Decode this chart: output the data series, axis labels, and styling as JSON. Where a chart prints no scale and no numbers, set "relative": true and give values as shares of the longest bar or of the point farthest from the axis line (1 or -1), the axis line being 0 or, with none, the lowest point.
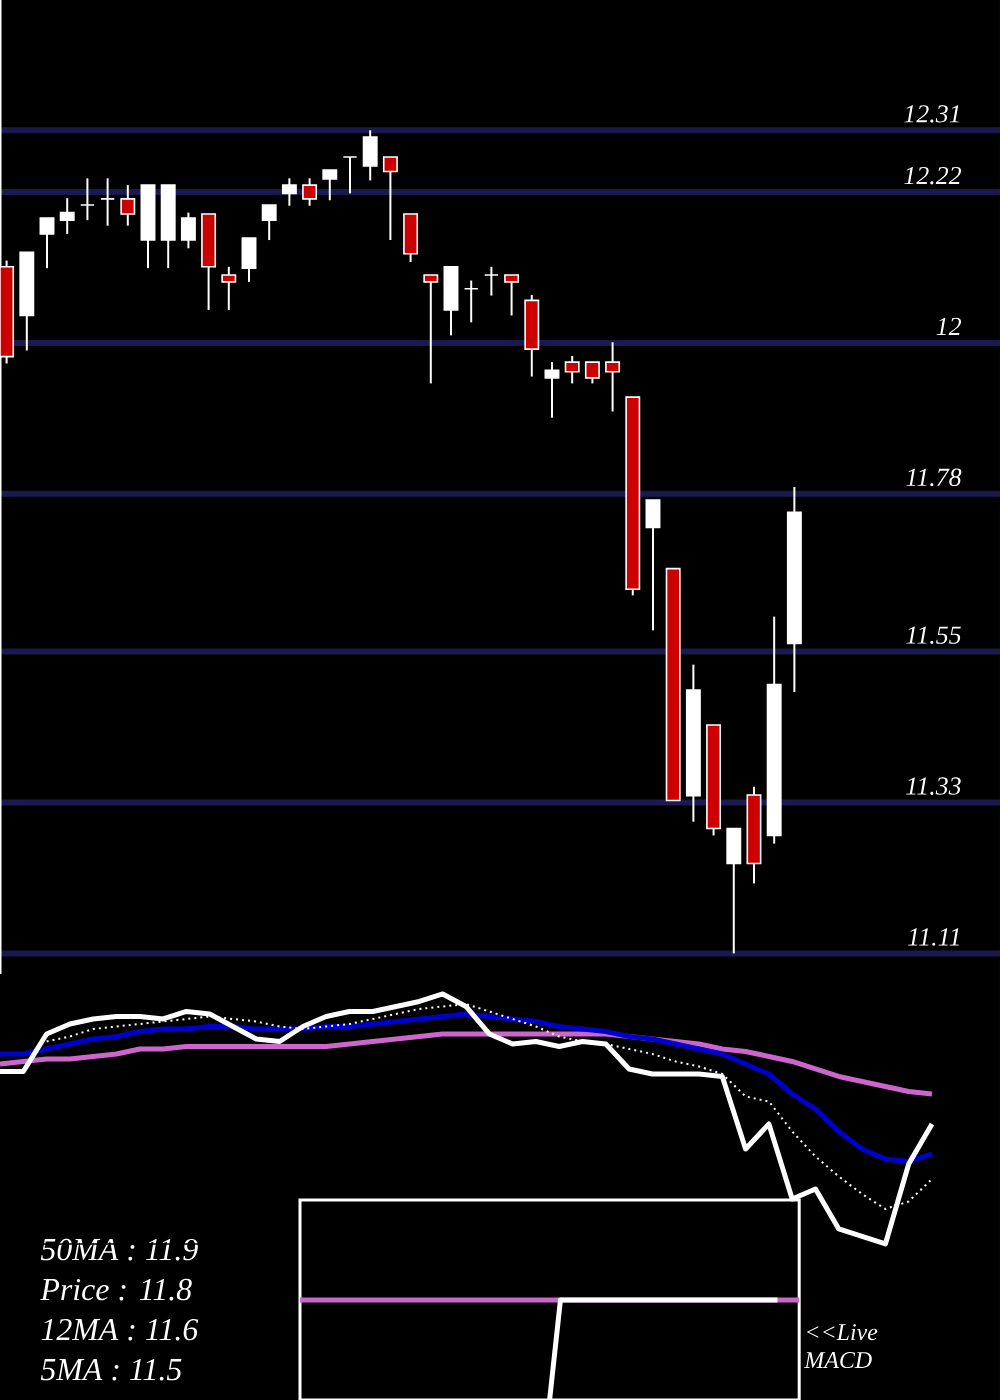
{
  "chart_data": [
    {
      "type": "candlestick",
      "categories": [
        null,
        null,
        null,
        null,
        null,
        null,
        null,
        null,
        null,
        null,
        null,
        null,
        null,
        null,
        null,
        null,
        null,
        null,
        null,
        null,
        null,
        null,
        null,
        null,
        null,
        null,
        null,
        null,
        null,
        null,
        null,
        null,
        null,
        null,
        null,
        null,
        null,
        null,
        null,
        null
      ],
      "ohlc": [
        [
          12.111,
          12.12,
          11.97,
          11.98
        ],
        [
          12.04,
          12.132,
          11.989,
          12.132
        ],
        [
          12.159,
          12.182,
          12.109,
          12.182
        ],
        [
          12.179,
          12.211,
          12.159,
          12.19
        ],
        [
          12.201,
          12.24,
          12.179,
          12.201
        ],
        [
          12.21,
          12.24,
          12.171,
          12.21
        ],
        [
          12.21,
          12.23,
          12.171,
          12.188
        ],
        [
          12.15,
          12.23,
          12.109,
          12.23
        ],
        [
          12.15,
          12.23,
          12.109,
          12.23
        ],
        [
          12.15,
          12.19,
          12.138,
          12.182
        ],
        [
          12.188,
          12.188,
          12.048,
          12.111
        ],
        [
          12.099,
          12.111,
          12.048,
          12.089
        ],
        [
          12.109,
          12.153,
          12.089,
          12.153
        ],
        [
          12.179,
          12.201,
          12.15,
          12.201
        ],
        [
          12.218,
          12.24,
          12.2,
          12.23
        ],
        [
          12.23,
          12.24,
          12.2,
          12.21
        ],
        [
          12.239,
          12.252,
          12.208,
          12.252
        ],
        [
          12.271,
          12.271,
          12.218,
          12.271
        ],
        [
          12.258,
          12.31,
          12.237,
          12.3
        ],
        [
          12.271,
          12.271,
          12.15,
          12.25
        ],
        [
          12.188,
          12.188,
          12.118,
          12.13
        ],
        [
          12.099,
          12.099,
          11.941,
          12.089
        ],
        [
          12.048,
          12.111,
          12.011,
          12.111
        ],
        [
          12.079,
          12.091,
          12.03,
          12.079
        ],
        [
          12.099,
          12.111,
          12.069,
          12.099
        ],
        [
          12.099,
          12.099,
          12.04,
          12.089
        ],
        [
          12.062,
          12.07,
          11.951,
          11.991
        ],
        [
          11.949,
          11.972,
          11.891,
          11.96
        ],
        [
          11.972,
          11.981,
          11.941,
          11.958
        ],
        [
          11.972,
          11.972,
          11.941,
          11.949
        ],
        [
          11.972,
          12.001,
          11.9,
          11.958
        ],
        [
          11.921,
          11.921,
          11.632,
          11.641
        ],
        [
          11.731,
          11.771,
          11.581,
          11.771
        ],
        [
          11.671,
          11.671,
          11.333,
          11.333
        ],
        [
          11.34,
          11.531,
          11.302,
          11.494
        ],
        [
          11.443,
          11.443,
          11.282,
          11.292
        ],
        [
          11.241,
          11.292,
          11.11,
          11.292
        ],
        [
          11.341,
          11.353,
          11.212,
          11.241
        ],
        [
          11.282,
          11.601,
          11.27,
          11.502
        ],
        [
          11.562,
          11.79,
          11.491,
          11.753
        ]
      ],
      "colors": [
        "#cc0000",
        "#ffffff",
        "#ffffff",
        "#ffffff",
        "#ffffff",
        "#ffffff",
        "#cc0000",
        "#ffffff",
        "#ffffff",
        "#ffffff",
        "#cc0000",
        "#cc0000",
        "#ffffff",
        "#ffffff",
        "#ffffff",
        "#cc0000",
        "#ffffff",
        "#ffffff",
        "#ffffff",
        "#cc0000",
        "#cc0000",
        "#cc0000",
        "#ffffff",
        "#ffffff",
        "#ffffff",
        "#cc0000",
        "#cc0000",
        "#ffffff",
        "#cc0000",
        "#cc0000",
        "#cc0000",
        "#cc0000",
        "#ffffff",
        "#cc0000",
        "#ffffff",
        "#cc0000",
        "#ffffff",
        "#cc0000",
        "#ffffff",
        "#ffffff"
      ],
      "ylim": [
        11.08,
        12.5
      ],
      "yticks": [
        11.11,
        11.33,
        11.55,
        11.78,
        12,
        12.22,
        12.31
      ],
      "grid": "y",
      "tick_labels": "y",
      "annotations": [
        "50MA : 11.9",
        "Price : 11.8",
        "12MA : 11.6",
        "5MA : 11.5"
      ]
    },
    {
      "type": "line",
      "relative": true,
      "categories": [
        null,
        null,
        null,
        null,
        null,
        null,
        null,
        null,
        null,
        null,
        null,
        null,
        null,
        null,
        null,
        null,
        null,
        null,
        null,
        null,
        null,
        null,
        null,
        null,
        null,
        null,
        null,
        null,
        null,
        null,
        null,
        null,
        null,
        null,
        null,
        null,
        null,
        null,
        null,
        null,
        null
      ],
      "series": [
        {
          "color": "#cc66cc",
          "values": [
            0.72,
            0.73,
            0.74,
            0.74,
            0.75,
            0.76,
            0.78,
            0.78,
            0.79,
            0.79,
            0.79,
            0.79,
            0.79,
            0.79,
            0.79,
            0.8,
            0.81,
            0.82,
            0.83,
            0.84,
            0.84,
            0.84,
            0.84,
            0.84,
            0.84,
            0.84,
            0.84,
            0.83,
            0.82,
            0.81,
            0.8,
            0.78,
            0.77,
            0.75,
            0.73,
            0.7,
            0.67,
            0.65,
            0.63,
            0.61,
            0.6
          ]
        },
        {
          "color": "#0000cc",
          "values": [
            0.76,
            0.76,
            0.78,
            0.8,
            0.82,
            0.83,
            0.85,
            0.86,
            0.86,
            0.87,
            0.87,
            0.86,
            0.86,
            0.86,
            0.87,
            0.87,
            0.88,
            0.89,
            0.9,
            0.91,
            0.92,
            0.91,
            0.9,
            0.89,
            0.87,
            0.86,
            0.85,
            0.83,
            0.82,
            0.8,
            0.78,
            0.76,
            0.72,
            0.68,
            0.6,
            0.54,
            0.45,
            0.38,
            0.34,
            0.33,
            0.36
          ]
        },
        {
          "color": "#ffffff",
          "line_style": "dotted",
          "values": [
            null,
            null,
            0.81,
            0.83,
            0.86,
            0.87,
            0.88,
            0.89,
            0.9,
            0.91,
            0.9,
            0.89,
            0.87,
            0.86,
            0.87,
            0.88,
            0.9,
            0.92,
            0.94,
            0.95,
            0.96,
            0.93,
            0.9,
            0.87,
            0.83,
            0.81,
            0.8,
            0.78,
            0.76,
            0.73,
            0.71,
            0.68,
            0.59,
            0.57,
            0.45,
            0.35,
            0.27,
            0.2,
            0.14,
            0.17,
            0.26
          ]
        },
        {
          "color": "#ffffff",
          "values": [
            0.69,
            0.69,
            0.84,
            0.88,
            0.9,
            0.91,
            0.91,
            0.9,
            0.93,
            0.92,
            0.87,
            0.82,
            0.81,
            0.87,
            0.91,
            0.93,
            0.93,
            0.95,
            0.97,
            1.0,
            0.95,
            0.84,
            0.8,
            0.81,
            0.79,
            0.81,
            0.8,
            0.7,
            0.68,
            0.68,
            0.68,
            0.67,
            0.38,
            0.48,
            0.18,
            0.22,
            0.06,
            0.03,
            0,
            0.32,
            0.48
          ]
        }
      ]
    },
    {
      "type": "line",
      "relative": true,
      "categories": [
        null,
        null,
        null,
        null,
        null,
        null,
        null,
        null,
        null,
        null,
        null,
        null,
        null,
        null,
        null,
        null,
        null,
        null,
        null,
        null,
        null,
        null,
        null,
        null,
        null,
        null,
        null,
        null,
        null,
        null,
        null,
        null,
        null,
        null,
        null,
        null,
        null,
        null,
        null,
        null,
        null,
        null,
        null,
        null,
        null,
        null,
        null
      ],
      "series": [
        {
          "color": "#cc66cc",
          "values": [
            1,
            1,
            1,
            1,
            1,
            1,
            1,
            1,
            1,
            1,
            1,
            1,
            1,
            1,
            1,
            1,
            1,
            1,
            1,
            1,
            1,
            1,
            1,
            1,
            1,
            1,
            1,
            1,
            1,
            1,
            1,
            1,
            1,
            1,
            1,
            1,
            1,
            1,
            1,
            1,
            1,
            1,
            1,
            1,
            1,
            1,
            1
          ]
        },
        {
          "color": "#ffffff",
          "values": [
            null,
            null,
            null,
            null,
            null,
            null,
            null,
            null,
            null,
            null,
            null,
            null,
            null,
            null,
            null,
            null,
            null,
            null,
            null,
            null,
            null,
            null,
            null,
            0,
            1,
            1,
            1,
            1,
            1,
            1,
            1,
            1,
            1,
            1,
            1,
            1,
            1,
            1,
            1,
            1,
            1,
            1,
            1,
            1,
            1,
            null,
            null
          ]
        }
      ],
      "annotations": [
        "<<Live MACD"
      ]
    }
  ]
}
